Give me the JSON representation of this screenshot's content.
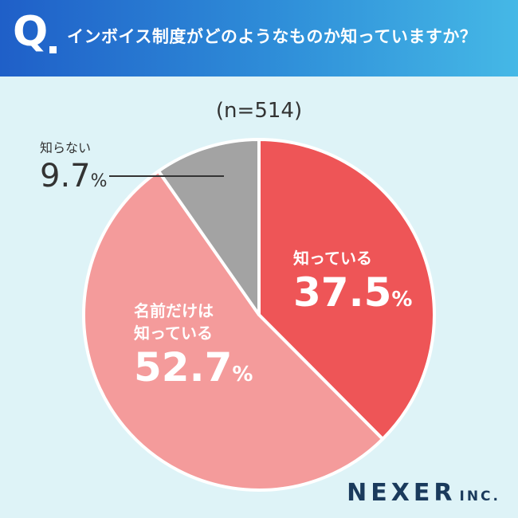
{
  "header": {
    "q_mark": "Q",
    "question": "インボイス制度がどのようなものか知っていますか？"
  },
  "sample_size": "(n=514)",
  "chart_data": {
    "type": "pie",
    "title": "インボイス制度がどのようなものか知っていますか？",
    "sample_size": "n=514",
    "categories": [
      "知っている",
      "名前だけは知っている",
      "知らない"
    ],
    "values": [
      37.5,
      52.7,
      9.7
    ],
    "unit": "%",
    "colors": [
      "#ee5557",
      "#f49b9b",
      "#a3a3a3"
    ],
    "start": "top, clockwise"
  },
  "labels": {
    "know": {
      "line1": "知っている",
      "num": "37.5",
      "unit": "%"
    },
    "name_only": {
      "line1": "名前だけは",
      "line2": "知っている",
      "num": "52.7",
      "unit": "%"
    },
    "dont_know": {
      "line1": "知らない",
      "num": "9.7",
      "unit": "%"
    }
  },
  "brand": {
    "name": "NEXER",
    "suffix": "INC."
  },
  "colors": {
    "background": "#def3f7",
    "leader_line": "#333333",
    "text_dark": "#333333"
  }
}
